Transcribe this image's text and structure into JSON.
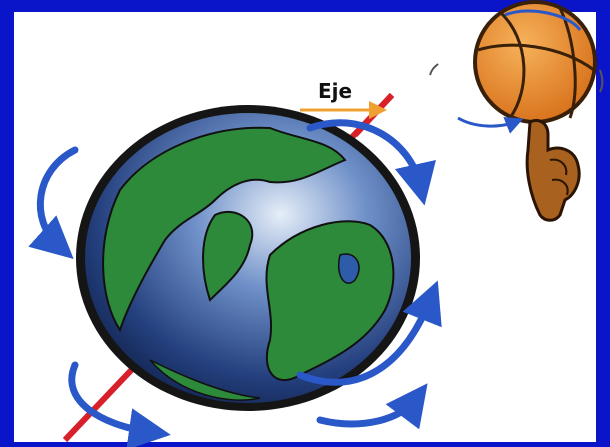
{
  "label": "Eje"
}
